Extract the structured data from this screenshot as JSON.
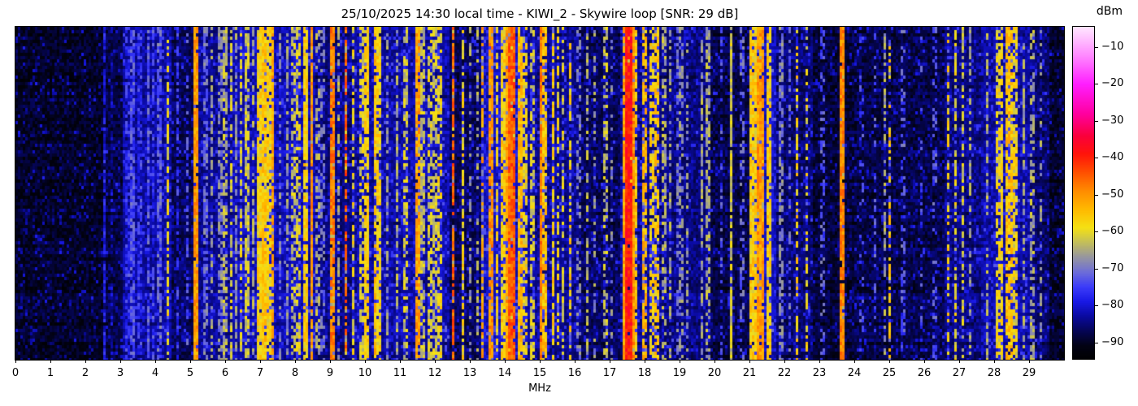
{
  "figure": {
    "background_color": "#ffffff",
    "axes_border_color": "#000000"
  },
  "chart_data": {
    "type": "heatmap",
    "subtype": "hf-radio-spectrum-waterfall",
    "title": "25/10/2025 14:30 local time - KIWI_2 - Skywire loop [SNR: 29 dB]",
    "datetime_local": "25/10/2025 14:30",
    "receiver": "KIWI_2",
    "antenna": "Skywire loop",
    "snr_db": 29,
    "xlabel": "MHz",
    "x_range_mhz": [
      0,
      30
    ],
    "x_ticks": [
      0,
      1,
      2,
      3,
      4,
      5,
      6,
      7,
      8,
      9,
      10,
      11,
      12,
      13,
      14,
      15,
      16,
      17,
      18,
      19,
      20,
      21,
      22,
      23,
      24,
      25,
      26,
      27,
      28,
      29
    ],
    "grid": false,
    "legend": "none",
    "colorbar": {
      "label": "dBm",
      "position": "right",
      "tick_values": [
        -10,
        -20,
        -30,
        -40,
        -50,
        -60,
        -70,
        -80,
        -90
      ],
      "value_range_dbm": [
        -94.5,
        -4.5
      ]
    },
    "colormap_stops": [
      {
        "dbm": -95,
        "color": "#000000"
      },
      {
        "dbm": -91,
        "color": "#020214"
      },
      {
        "dbm": -87,
        "color": "#050555"
      },
      {
        "dbm": -83,
        "color": "#0a0aa0"
      },
      {
        "dbm": -79,
        "color": "#1919e6"
      },
      {
        "dbm": -75,
        "color": "#3c3cfa"
      },
      {
        "dbm": -71,
        "color": "#6e6ed7"
      },
      {
        "dbm": -67,
        "color": "#9696a0"
      },
      {
        "dbm": -63,
        "color": "#c3be5a"
      },
      {
        "dbm": -59,
        "color": "#f5e114"
      },
      {
        "dbm": -54,
        "color": "#ffb900"
      },
      {
        "dbm": -49,
        "color": "#ff8c00"
      },
      {
        "dbm": -44,
        "color": "#ff5000"
      },
      {
        "dbm": -39,
        "color": "#ff140a"
      },
      {
        "dbm": -34,
        "color": "#fa003c"
      },
      {
        "dbm": -28,
        "color": "#ff00a0"
      },
      {
        "dbm": -20,
        "color": "#ff1eff"
      },
      {
        "dbm": -12,
        "color": "#ff8cff"
      },
      {
        "dbm": -5,
        "color": "#ffe1ff"
      }
    ],
    "noise_floor_dbm": -92,
    "noise_region_fields": [
      "start_mhz",
      "end_mhz",
      "boost_db"
    ],
    "noise_regions": [
      [
        0,
        2.5,
        1
      ],
      [
        2.5,
        3.1,
        3
      ],
      [
        3.1,
        4.5,
        8
      ],
      [
        4.5,
        5.1,
        4
      ],
      [
        5.1,
        6.2,
        7
      ],
      [
        6.2,
        8.6,
        9
      ],
      [
        8.6,
        9.7,
        6
      ],
      [
        9.7,
        10.6,
        8
      ],
      [
        10.6,
        12.4,
        8
      ],
      [
        12.4,
        13.3,
        4
      ],
      [
        13.3,
        14.6,
        10
      ],
      [
        14.6,
        16.1,
        7
      ],
      [
        16.1,
        17.3,
        4
      ],
      [
        17.3,
        18.4,
        7
      ],
      [
        18.4,
        19.9,
        6
      ],
      [
        19.9,
        21.0,
        3
      ],
      [
        21.0,
        21.8,
        10
      ],
      [
        21.8,
        22.8,
        5
      ],
      [
        22.8,
        24.0,
        2
      ],
      [
        24.0,
        26.6,
        3
      ],
      [
        26.6,
        27.6,
        6
      ],
      [
        27.6,
        29.0,
        8
      ],
      [
        29.0,
        29.6,
        5
      ],
      [
        29.6,
        30,
        1
      ]
    ],
    "signal_fields": [
      "mhz",
      "width_mhz",
      "dbm",
      "duty"
    ],
    "signals": [
      [
        2.56,
        0.03,
        -79,
        0.85
      ],
      [
        2.75,
        0.02,
        -82,
        0.5
      ],
      [
        3.2,
        0.03,
        -77,
        0.6
      ],
      [
        3.33,
        0.04,
        -74,
        0.75
      ],
      [
        3.55,
        0.03,
        -76,
        0.6
      ],
      [
        3.8,
        0.04,
        -73,
        0.7
      ],
      [
        3.95,
        0.03,
        -75,
        0.6
      ],
      [
        4.1,
        0.04,
        -72,
        0.7
      ],
      [
        4.36,
        0.03,
        -59,
        0.5
      ],
      [
        4.65,
        0.02,
        -76,
        0.5
      ],
      [
        4.9,
        0.02,
        -74,
        0.5
      ],
      [
        5.17,
        0.03,
        -51,
        0.95
      ],
      [
        5.45,
        0.03,
        -71,
        0.6
      ],
      [
        5.62,
        0.02,
        -67,
        0.5
      ],
      [
        5.85,
        0.03,
        -69,
        0.6
      ],
      [
        6.0,
        0.03,
        -64,
        0.55
      ],
      [
        6.16,
        0.02,
        -61,
        0.6
      ],
      [
        6.3,
        0.03,
        -67,
        0.6
      ],
      [
        6.45,
        0.02,
        -60,
        0.5
      ],
      [
        6.62,
        0.05,
        -62,
        0.7
      ],
      [
        6.8,
        0.03,
        -65,
        0.55
      ],
      [
        7.0,
        0.1,
        -58,
        0.9
      ],
      [
        7.12,
        0.08,
        -56,
        0.9
      ],
      [
        7.24,
        0.05,
        -58,
        0.8
      ],
      [
        7.38,
        0.02,
        -52,
        0.8
      ],
      [
        7.56,
        0.02,
        -69,
        0.5
      ],
      [
        7.78,
        0.03,
        -67,
        0.6
      ],
      [
        7.95,
        0.02,
        -63,
        0.5
      ],
      [
        8.1,
        0.02,
        -61,
        0.55
      ],
      [
        8.28,
        0.09,
        -57,
        0.85
      ],
      [
        8.47,
        0.03,
        -50,
        0.9
      ],
      [
        8.65,
        0.02,
        -65,
        0.5
      ],
      [
        8.8,
        0.02,
        -71,
        0.5
      ],
      [
        9.07,
        0.03,
        -48,
        0.85
      ],
      [
        9.25,
        0.02,
        -64,
        0.5
      ],
      [
        9.46,
        0.02,
        -45,
        0.7
      ],
      [
        9.65,
        0.02,
        -59,
        0.5
      ],
      [
        9.9,
        0.03,
        -61,
        0.6
      ],
      [
        10.05,
        0.1,
        -57,
        0.85
      ],
      [
        10.28,
        0.04,
        -55,
        0.7
      ],
      [
        10.4,
        0.06,
        -58,
        0.8
      ],
      [
        10.62,
        0.02,
        -67,
        0.5
      ],
      [
        10.9,
        0.03,
        -65,
        0.6
      ],
      [
        11.15,
        0.03,
        -62,
        0.6
      ],
      [
        11.5,
        0.03,
        -52,
        0.8
      ],
      [
        11.65,
        0.05,
        -63,
        0.65
      ],
      [
        11.85,
        0.04,
        -61,
        0.6
      ],
      [
        12.0,
        0.05,
        -62,
        0.6
      ],
      [
        12.15,
        0.03,
        -59,
        0.55
      ],
      [
        12.5,
        0.02,
        -46,
        0.75
      ],
      [
        12.8,
        0.03,
        -58,
        0.6
      ],
      [
        13.0,
        0.02,
        -67,
        0.4
      ],
      [
        13.2,
        0.02,
        -65,
        0.4
      ],
      [
        13.38,
        0.02,
        -52,
        0.55
      ],
      [
        13.58,
        0.05,
        -50,
        0.8
      ],
      [
        13.78,
        0.03,
        -59,
        0.6
      ],
      [
        13.95,
        0.06,
        -57,
        0.8
      ],
      [
        14.08,
        0.08,
        -51,
        0.9
      ],
      [
        14.22,
        0.16,
        -45,
        0.95
      ],
      [
        14.42,
        0.07,
        -54,
        0.85
      ],
      [
        14.58,
        0.03,
        -59,
        0.6
      ],
      [
        14.78,
        0.03,
        -61,
        0.6
      ],
      [
        15.02,
        0.04,
        -48,
        0.9
      ],
      [
        15.15,
        0.03,
        -55,
        0.7
      ],
      [
        15.38,
        0.04,
        -57,
        0.7
      ],
      [
        15.52,
        0.03,
        -59,
        0.6
      ],
      [
        15.68,
        0.02,
        -61,
        0.5
      ],
      [
        15.88,
        0.02,
        -57,
        0.5
      ],
      [
        16.12,
        0.02,
        -69,
        0.4
      ],
      [
        16.35,
        0.02,
        -65,
        0.5
      ],
      [
        16.58,
        0.02,
        -67,
        0.4
      ],
      [
        16.88,
        0.02,
        -63,
        0.45
      ],
      [
        17.08,
        0.02,
        -69,
        0.4
      ],
      [
        17.45,
        0.06,
        -52,
        0.9
      ],
      [
        17.56,
        0.14,
        -39,
        0.97
      ],
      [
        17.68,
        0.04,
        -50,
        0.9
      ],
      [
        17.78,
        0.02,
        -56,
        0.7
      ],
      [
        18.0,
        0.03,
        -54,
        0.65
      ],
      [
        18.22,
        0.03,
        -58,
        0.6
      ],
      [
        18.35,
        0.03,
        -56,
        0.6
      ],
      [
        18.55,
        0.02,
        -65,
        0.5
      ],
      [
        18.75,
        0.02,
        -66,
        0.6
      ],
      [
        18.95,
        0.02,
        -70,
        0.5
      ],
      [
        19.05,
        0.02,
        -68,
        0.5
      ],
      [
        19.2,
        0.02,
        -67,
        0.45
      ],
      [
        19.62,
        0.02,
        -66,
        0.7
      ],
      [
        19.8,
        0.03,
        -65,
        0.6
      ],
      [
        20.2,
        0.02,
        -73,
        0.4
      ],
      [
        20.5,
        0.02,
        -62,
        0.9
      ],
      [
        20.8,
        0.02,
        -72,
        0.4
      ],
      [
        21.1,
        0.1,
        -57,
        0.85
      ],
      [
        21.32,
        0.12,
        -51,
        0.9
      ],
      [
        21.55,
        0.1,
        -57,
        0.8
      ],
      [
        21.9,
        0.03,
        -69,
        0.6
      ],
      [
        22.15,
        0.02,
        -71,
        0.5
      ],
      [
        22.38,
        0.02,
        -57,
        0.45
      ],
      [
        22.62,
        0.02,
        -59,
        0.4
      ],
      [
        23.1,
        0.02,
        -73,
        0.35
      ],
      [
        23.65,
        0.03,
        -49,
        0.92
      ],
      [
        24.2,
        0.02,
        -75,
        0.3
      ],
      [
        24.6,
        0.02,
        -73,
        0.3
      ],
      [
        24.87,
        0.02,
        -66,
        0.5
      ],
      [
        25.0,
        0.02,
        -57,
        0.45
      ],
      [
        25.4,
        0.02,
        -73,
        0.4
      ],
      [
        25.9,
        0.02,
        -75,
        0.3
      ],
      [
        26.3,
        0.02,
        -73,
        0.35
      ],
      [
        26.7,
        0.03,
        -58,
        0.5
      ],
      [
        26.9,
        0.04,
        -60,
        0.6
      ],
      [
        27.1,
        0.04,
        -62,
        0.6
      ],
      [
        27.3,
        0.03,
        -66,
        0.5
      ],
      [
        27.8,
        0.03,
        -65,
        0.5
      ],
      [
        28.15,
        0.12,
        -59,
        0.7
      ],
      [
        28.4,
        0.14,
        -55,
        0.8
      ],
      [
        28.62,
        0.08,
        -59,
        0.7
      ],
      [
        28.85,
        0.04,
        -66,
        0.6
      ],
      [
        29.1,
        0.03,
        -65,
        0.5
      ],
      [
        29.32,
        0.02,
        -67,
        0.4
      ]
    ]
  }
}
